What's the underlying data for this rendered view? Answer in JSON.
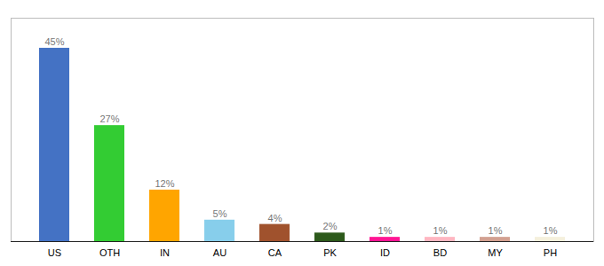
{
  "chart_data": {
    "type": "bar",
    "categories": [
      "US",
      "OTH",
      "IN",
      "AU",
      "CA",
      "PK",
      "ID",
      "BD",
      "MY",
      "PH"
    ],
    "values": [
      45,
      27,
      12,
      5,
      4,
      2,
      1,
      1,
      1,
      1
    ],
    "value_labels": [
      "45%",
      "27%",
      "12%",
      "5%",
      "4%",
      "2%",
      "1%",
      "1%",
      "1%",
      "1%"
    ],
    "colors": [
      "#4472C4",
      "#33CC33",
      "#FFA500",
      "#87CEEB",
      "#A0522D",
      "#2D5A1B",
      "#FF1493",
      "#FFB6C1",
      "#D2A090",
      "#F5F0DC"
    ],
    "ylim": [
      0,
      52
    ],
    "data_labels": true,
    "tick_labels": "x",
    "grid": false
  }
}
